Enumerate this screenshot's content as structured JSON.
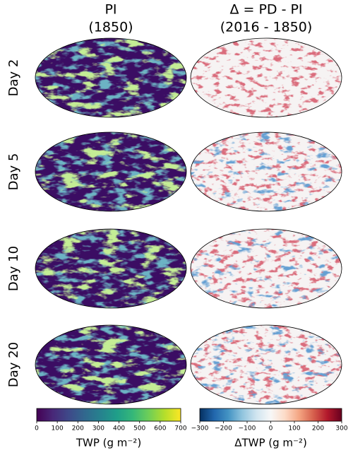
{
  "columns": [
    {
      "title": "PI",
      "subtitle": "(1850)"
    },
    {
      "title": "Δ = PD - PI",
      "subtitle": "(2016 - 1850)"
    }
  ],
  "rows": [
    "Day 2",
    "Day 5",
    "Day 10",
    "Day 20"
  ],
  "colorbars": [
    {
      "label": "TWP (g m⁻²)",
      "lim": [
        0,
        700
      ],
      "ticks": [
        0,
        100,
        200,
        300,
        400,
        500,
        600,
        700
      ],
      "colors": [
        "#440154",
        "#482878",
        "#3e4989",
        "#31688e",
        "#26828e",
        "#1f9e89",
        "#35b779",
        "#6ece58",
        "#b5de2b",
        "#fde725"
      ]
    },
    {
      "label": "ΔTWP (g m⁻²)",
      "lim": [
        -300,
        300
      ],
      "ticks": [
        {
          "value": -300,
          "label": "−300"
        },
        {
          "value": -200,
          "label": "−200"
        },
        {
          "value": -100,
          "label": "−100"
        },
        0,
        100,
        200,
        300
      ],
      "colors": [
        "#053061",
        "#2166ac",
        "#4393c3",
        "#92c5de",
        "#d1e5f0",
        "#f7f7f7",
        "#fddbc7",
        "#f4a582",
        "#d6604d",
        "#b2182b",
        "#67001f"
      ]
    }
  ]
}
